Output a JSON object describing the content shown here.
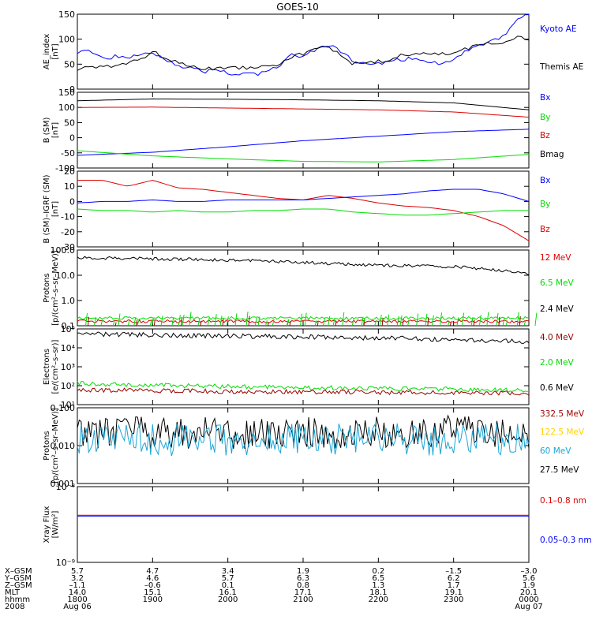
{
  "title": "GOES-10",
  "colors": {
    "black": "#000000",
    "blue": "#0000ff",
    "green": "#00dd00",
    "red": "#dd0000",
    "darkred": "#990000",
    "yellow": "#ffd200",
    "cyan": "#1aa6d6"
  },
  "chart_data": [
    {
      "type": "line",
      "id": "ae",
      "ylabel": [
        "AE_index",
        "[nT]"
      ],
      "ylim": [
        0,
        150
      ],
      "yticks": [
        "0",
        "50",
        "100",
        "150"
      ],
      "grid": false,
      "legend": [
        {
          "name": "Kyoto AE",
          "color": "blue"
        },
        {
          "name": "Themis AE",
          "color": "black"
        }
      ],
      "x": [
        0,
        10,
        20,
        30,
        40,
        50,
        60,
        70,
        80,
        90,
        100,
        110,
        120,
        130,
        140,
        150,
        160,
        170,
        180,
        190,
        200,
        210,
        220,
        230,
        240,
        250,
        260,
        270,
        280,
        290,
        300,
        310,
        320,
        330,
        340,
        350,
        360
      ],
      "series": [
        {
          "name": "Kyoto AE",
          "color": "blue",
          "values": [
            75,
            78,
            62,
            65,
            60,
            72,
            75,
            60,
            48,
            42,
            35,
            38,
            32,
            30,
            30,
            32,
            45,
            70,
            62,
            80,
            90,
            75,
            55,
            50,
            52,
            55,
            60,
            62,
            55,
            50,
            62,
            75,
            85,
            95,
            105,
            140,
            150
          ]
        },
        {
          "name": "Themis AE",
          "color": "black",
          "values": [
            40,
            45,
            42,
            48,
            52,
            60,
            75,
            62,
            52,
            48,
            40,
            42,
            45,
            42,
            45,
            48,
            50,
            65,
            70,
            80,
            85,
            70,
            50,
            52,
            55,
            60,
            68,
            72,
            70,
            70,
            72,
            80,
            88,
            92,
            95,
            105,
            100
          ]
        }
      ]
    },
    {
      "type": "line",
      "id": "bsm",
      "ylabel": [
        "B (SM)",
        "[nT]"
      ],
      "ylim": [
        -100,
        150
      ],
      "yticks": [
        "-100",
        "-50",
        "0",
        "50",
        "100",
        "150"
      ],
      "grid": false,
      "legend": [
        {
          "name": "Bx",
          "color": "blue"
        },
        {
          "name": "By",
          "color": "green"
        },
        {
          "name": "Bz",
          "color": "red"
        },
        {
          "name": "Bmag",
          "color": "black"
        }
      ],
      "x": [
        0,
        60,
        120,
        180,
        240,
        300,
        360
      ],
      "series": [
        {
          "name": "Bmag",
          "color": "black",
          "values": [
            122,
            128,
            127,
            125,
            122,
            115,
            92
          ]
        },
        {
          "name": "Bz",
          "color": "red",
          "values": [
            100,
            101,
            98,
            95,
            92,
            85,
            68
          ]
        },
        {
          "name": "Bx",
          "color": "blue",
          "values": [
            -58,
            -48,
            -30,
            -10,
            5,
            20,
            28
          ]
        },
        {
          "name": "By",
          "color": "green",
          "values": [
            -43,
            -60,
            -70,
            -78,
            -80,
            -72,
            -55
          ]
        }
      ]
    },
    {
      "type": "line",
      "id": "bdiff",
      "ylabel": [
        "B (SM)–IGRF (SM)",
        "[nT]"
      ],
      "ylim": [
        -30,
        20
      ],
      "yticks": [
        "-30",
        "-20",
        "-10",
        "0",
        "10",
        "20"
      ],
      "grid": false,
      "legend": [
        {
          "name": "Bx",
          "color": "blue"
        },
        {
          "name": "By",
          "color": "green"
        },
        {
          "name": "Bz",
          "color": "red"
        }
      ],
      "x": [
        0,
        20,
        40,
        60,
        80,
        100,
        120,
        140,
        160,
        180,
        200,
        220,
        240,
        260,
        280,
        300,
        320,
        340,
        360
      ],
      "series": [
        {
          "name": "Bz",
          "color": "red",
          "values": [
            14,
            14,
            10,
            14,
            9,
            8,
            6,
            4,
            2,
            1,
            4,
            2,
            -1,
            -3,
            -4,
            -6,
            -10,
            -16,
            -26
          ]
        },
        {
          "name": "Bx",
          "color": "blue",
          "values": [
            -1,
            0,
            0,
            1,
            0,
            0,
            1,
            1,
            1,
            1,
            2,
            3,
            4,
            5,
            7,
            8,
            8,
            5,
            0
          ]
        },
        {
          "name": "By",
          "color": "green",
          "values": [
            -5,
            -6,
            -6,
            -7,
            -6,
            -7,
            -7,
            -6,
            -6,
            -5,
            -5,
            -7,
            -8,
            -9,
            -9,
            -8,
            -7,
            -6,
            -6
          ]
        }
      ]
    },
    {
      "type": "line",
      "id": "protons_hi",
      "ylabel": [
        "Protons",
        "[p/(cm²–s–sr–MeV)]"
      ],
      "scale": "log",
      "ylim": [
        0.1,
        100
      ],
      "yticks": [
        "0.1",
        "1.0",
        "10.0",
        "100.0"
      ],
      "grid": false,
      "legend": [
        {
          "name": "12 MeV",
          "color": "red"
        },
        {
          "name": "6.5 MeV",
          "color": "green"
        },
        {
          "name": "2.4 MeV",
          "color": "black"
        }
      ],
      "x": [
        0,
        60,
        120,
        180,
        240,
        300,
        360
      ],
      "series": [
        {
          "name": "2.4 MeV",
          "color": "black",
          "values": [
            50,
            45,
            40,
            32,
            25,
            22,
            12
          ]
        },
        {
          "name": "6.5 MeV",
          "color": "green",
          "values": [
            0.2,
            0.2,
            0.2,
            0.2,
            0.2,
            0.2,
            0.2
          ]
        },
        {
          "name": "12 MeV",
          "color": "red",
          "values": [
            0.15,
            0.15,
            0.15,
            0.15,
            0.15,
            0.15,
            0.15
          ]
        }
      ]
    },
    {
      "type": "line",
      "id": "electrons",
      "ylabel": [
        "Electrons",
        "[e/(cm²–s–sr)]"
      ],
      "scale": "log",
      "ylim": [
        10,
        100000
      ],
      "yticks": [
        "10¹",
        "10²",
        "10³",
        "10⁴",
        "10⁵"
      ],
      "grid": false,
      "legend": [
        {
          "name": "4.0 MeV",
          "color": "darkred"
        },
        {
          "name": "2.0 MeV",
          "color": "green"
        },
        {
          "name": "0.6 MeV",
          "color": "black"
        }
      ],
      "x": [
        0,
        60,
        120,
        180,
        240,
        300,
        360
      ],
      "series": [
        {
          "name": "0.6 MeV",
          "color": "black",
          "values": [
            55000,
            48000,
            42000,
            38000,
            33000,
            28000,
            20000
          ]
        },
        {
          "name": "2.0 MeV",
          "color": "green",
          "values": [
            130,
            110,
            90,
            80,
            70,
            65,
            55
          ]
        },
        {
          "name": "4.0 MeV",
          "color": "darkred",
          "values": [
            60,
            55,
            50,
            48,
            45,
            42,
            40
          ]
        }
      ]
    },
    {
      "type": "line",
      "id": "protons_lo",
      "ylabel": [
        "Protons",
        "[p/(cm²–s–sr–MeV)]"
      ],
      "scale": "log",
      "ylim": [
        0.001,
        0.1
      ],
      "yticks": [
        "0.001",
        "0.010",
        "0.100"
      ],
      "grid": false,
      "legend": [
        {
          "name": "332.5 MeV",
          "color": "darkred"
        },
        {
          "name": "122.5 MeV",
          "color": "yellow"
        },
        {
          "name": "60 MeV",
          "color": "cyan"
        },
        {
          "name": "27.5 MeV",
          "color": "black"
        }
      ],
      "x": [
        0,
        60,
        120,
        180,
        240,
        300,
        360
      ],
      "series": [
        {
          "name": "27.5 MeV",
          "color": "black",
          "values": [
            0.022,
            0.022,
            0.021,
            0.022,
            0.022,
            0.024,
            0.022
          ]
        },
        {
          "name": "60 MeV",
          "color": "cyan",
          "values": [
            0.015,
            0.014,
            0.014,
            0.015,
            0.015,
            0.014,
            0.015
          ]
        }
      ]
    },
    {
      "type": "line",
      "id": "xray",
      "ylabel": [
        "Xray Flux",
        "[W/m²]"
      ],
      "scale": "log",
      "ylim": [
        1e-09,
        1e-08
      ],
      "yticks": [
        "10⁻⁹",
        "10⁻⁸"
      ],
      "grid": false,
      "legend": [
        {
          "name": "0.1–0.8 nm",
          "color": "red"
        },
        {
          "name": "0.05–0.3 nm",
          "color": "blue"
        }
      ],
      "x": [
        0,
        360
      ],
      "series": [
        {
          "name": "0.1–0.8 nm",
          "color": "red",
          "values": [
            4.2e-09,
            4.2e-09
          ]
        },
        {
          "name": "0.05–0.3 nm",
          "color": "blue",
          "values": [
            4.1e-09,
            4.1e-09
          ]
        }
      ]
    }
  ],
  "xaxis": {
    "row_labels": [
      "X–GSM",
      "Y–GSM",
      "Z–GSM",
      "MLT",
      "hhmm",
      "2008"
    ],
    "columns": [
      [
        "5.7",
        "3.2",
        "–1.1",
        "14.0",
        "1800",
        "Aug 06"
      ],
      [
        "4.7",
        "4.6",
        "–0.6",
        "15.1",
        "1900",
        ""
      ],
      [
        "3.4",
        "5.7",
        "0.1",
        "16.1",
        "2000",
        ""
      ],
      [
        "1.9",
        "6.3",
        "0.8",
        "17.1",
        "2100",
        ""
      ],
      [
        "0.2",
        "6.5",
        "1.3",
        "18.1",
        "2200",
        ""
      ],
      [
        "–1.5",
        "6.2",
        "1.7",
        "19.1",
        "2300",
        ""
      ],
      [
        "–3.0",
        "5.6",
        "1.9",
        "20.1",
        "0000",
        "Aug 07"
      ]
    ]
  }
}
